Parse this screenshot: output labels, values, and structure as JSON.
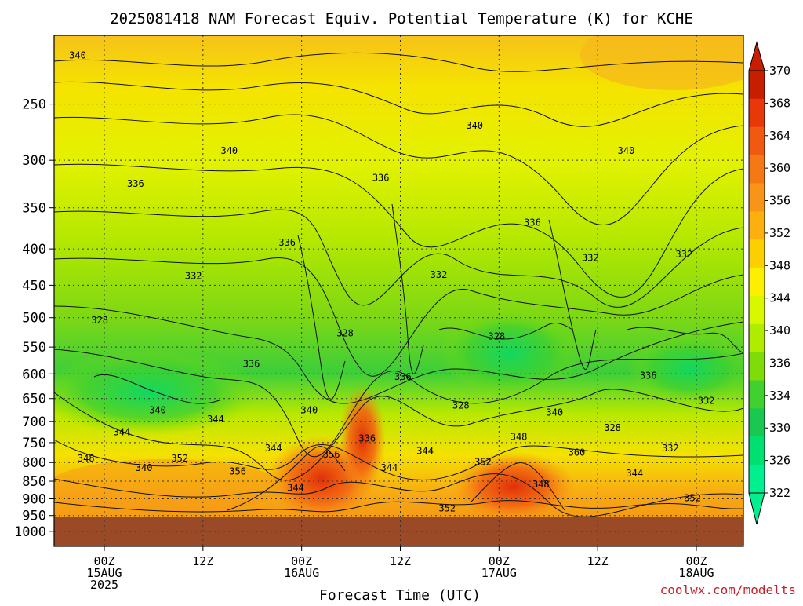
{
  "chart_data": {
    "type": "heatmap",
    "title": "2025081418 NAM Forecast Equiv. Potential Temperature (K) for KCHE",
    "xlabel": "Forecast Time (UTC)",
    "ylabel": "",
    "y_scale": "log-pressure",
    "ylim": [
      1050,
      200
    ],
    "y_ticks": [
      "250",
      "300",
      "350",
      "400",
      "450",
      "500",
      "550",
      "600",
      "650",
      "700",
      "750",
      "800",
      "850",
      "900",
      "950",
      "1000"
    ],
    "x_ticks": [
      {
        "lines": [
          "00Z",
          "15AUG",
          "2025"
        ]
      },
      {
        "lines": [
          "12Z"
        ]
      },
      {
        "lines": [
          "00Z",
          "16AUG"
        ]
      },
      {
        "lines": [
          "12Z"
        ]
      },
      {
        "lines": [
          "00Z",
          "17AUG"
        ]
      },
      {
        "lines": [
          "12Z"
        ]
      },
      {
        "lines": [
          "00Z",
          "18AUG"
        ]
      }
    ],
    "grid": true,
    "colorbar": {
      "labels": [
        "370",
        "368",
        "364",
        "360",
        "356",
        "352",
        "348",
        "344",
        "340",
        "336",
        "334",
        "330",
        "326",
        "322"
      ],
      "colors": [
        "#c81e00",
        "#e8380a",
        "#f05a10",
        "#f47814",
        "#f89418",
        "#fcb010",
        "#fcd000",
        "#fcf000",
        "#d8f800",
        "#b0ec00",
        "#80dc08",
        "#40d030",
        "#18c850",
        "#00e070",
        "#00f090"
      ]
    },
    "surface_color": "#9b4a28",
    "contour_labels": [
      {
        "t": "340",
        "p": 215
      },
      {
        "t": "340",
        "p": 270
      },
      {
        "t": "340",
        "p": 293
      },
      {
        "t": "340",
        "p": 293
      },
      {
        "t": "336",
        "p": 320
      },
      {
        "t": "336",
        "p": 326
      },
      {
        "t": "336",
        "p": 370
      },
      {
        "t": "336",
        "p": 395
      },
      {
        "t": "332",
        "p": 410
      },
      {
        "t": "332",
        "p": 438
      },
      {
        "t": "332",
        "p": 440
      },
      {
        "t": "332",
        "p": 415
      },
      {
        "t": "328",
        "p": 530
      },
      {
        "t": "328",
        "p": 508
      },
      {
        "t": "328",
        "p": 535
      },
      {
        "t": "336",
        "p": 585
      },
      {
        "t": "336",
        "p": 608
      },
      {
        "t": "336",
        "p": 610
      },
      {
        "t": "340",
        "p": 680
      },
      {
        "t": "340",
        "p": 685
      },
      {
        "t": "340",
        "p": 680
      },
      {
        "t": "332",
        "p": 660
      },
      {
        "t": "328",
        "p": 670
      },
      {
        "t": "344",
        "p": 700
      },
      {
        "t": "328",
        "p": 720
      },
      {
        "t": "336",
        "p": 745
      },
      {
        "t": "344",
        "p": 730
      },
      {
        "t": "348",
        "p": 742
      },
      {
        "t": "344",
        "p": 770
      },
      {
        "t": "332",
        "p": 770
      },
      {
        "t": "344",
        "p": 776
      },
      {
        "t": "352",
        "p": 795
      },
      {
        "t": "360",
        "p": 780
      },
      {
        "t": "356",
        "p": 785
      },
      {
        "t": "348",
        "p": 795
      },
      {
        "t": "352",
        "p": 805
      },
      {
        "t": "356",
        "p": 830
      },
      {
        "t": "344",
        "p": 835
      },
      {
        "t": "344",
        "p": 820
      },
      {
        "t": "340",
        "p": 820
      },
      {
        "t": "348",
        "p": 865
      },
      {
        "t": "344",
        "p": 875
      },
      {
        "t": "352",
        "p": 905
      },
      {
        "t": "352",
        "p": 935
      }
    ],
    "credit": "coolwx.com/modelts"
  }
}
